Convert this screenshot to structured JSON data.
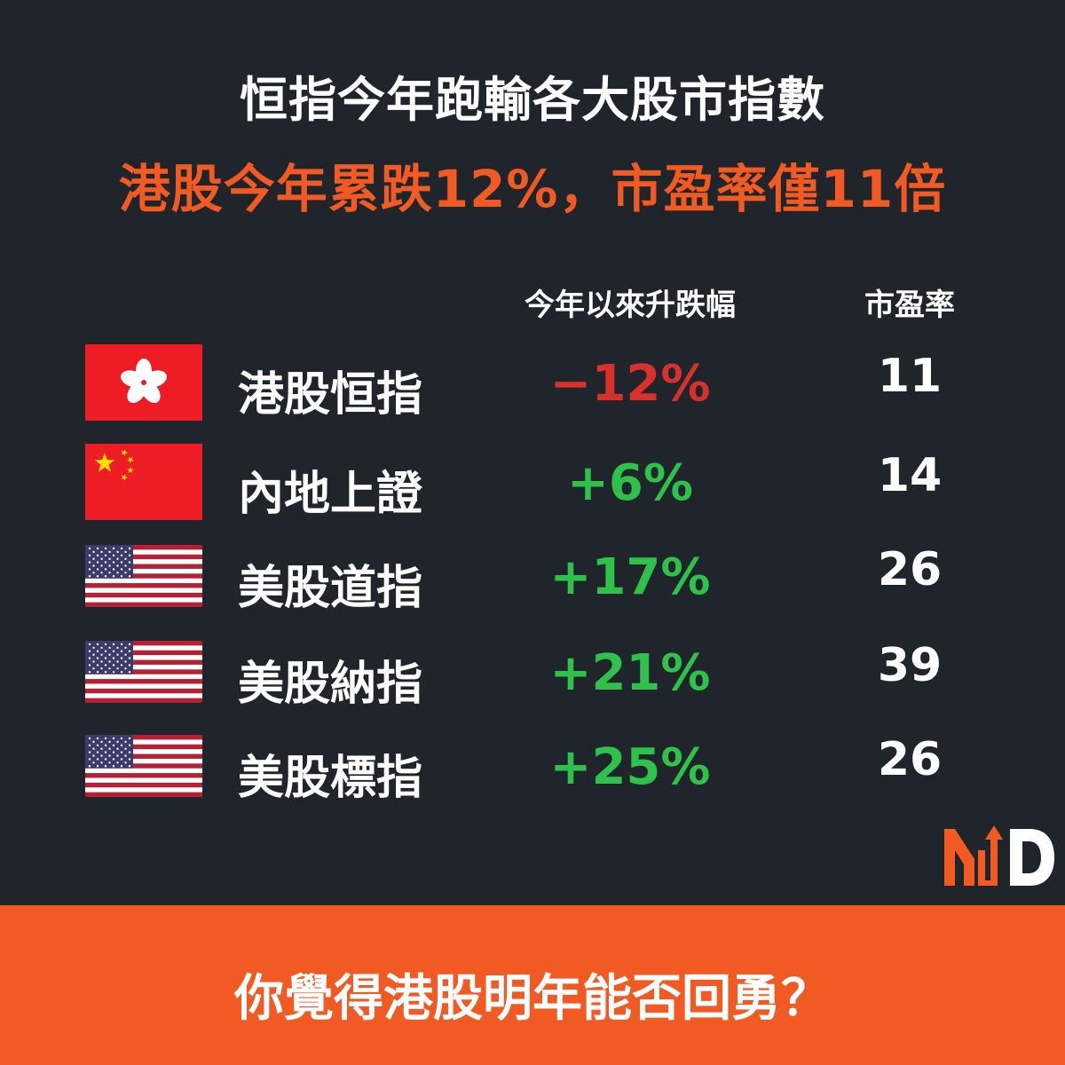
{
  "title": "恒指今年跑輸各大股市指數",
  "subtitle": "港股今年累跌12%，市盈率僅11倍",
  "columns": {
    "change": "今年以來升跌幅",
    "pe": "市盈率"
  },
  "rows": [
    {
      "flag": "hong-kong-flag",
      "name": "港股恒指",
      "change": "−12%",
      "pe": "11",
      "color": "#d9302c"
    },
    {
      "flag": "china-flag",
      "name": "內地上證",
      "change": "+6%",
      "pe": "14",
      "color": "#2ec24a"
    },
    {
      "flag": "us-flag",
      "name": "美股道指",
      "change": "+17%",
      "pe": "26",
      "color": "#2ec24a"
    },
    {
      "flag": "us-flag",
      "name": "美股納指",
      "change": "+21%",
      "pe": "39",
      "color": "#2ec24a"
    },
    {
      "flag": "us-flag",
      "name": "美股標指",
      "change": "+25%",
      "pe": "26",
      "color": "#2ec24a"
    }
  ],
  "footer": "你覺得港股明年能否回勇？",
  "colors": {
    "background": "#1f252b",
    "accent": "#f15a22",
    "negative": "#d9302c",
    "positive": "#2ec24a"
  }
}
